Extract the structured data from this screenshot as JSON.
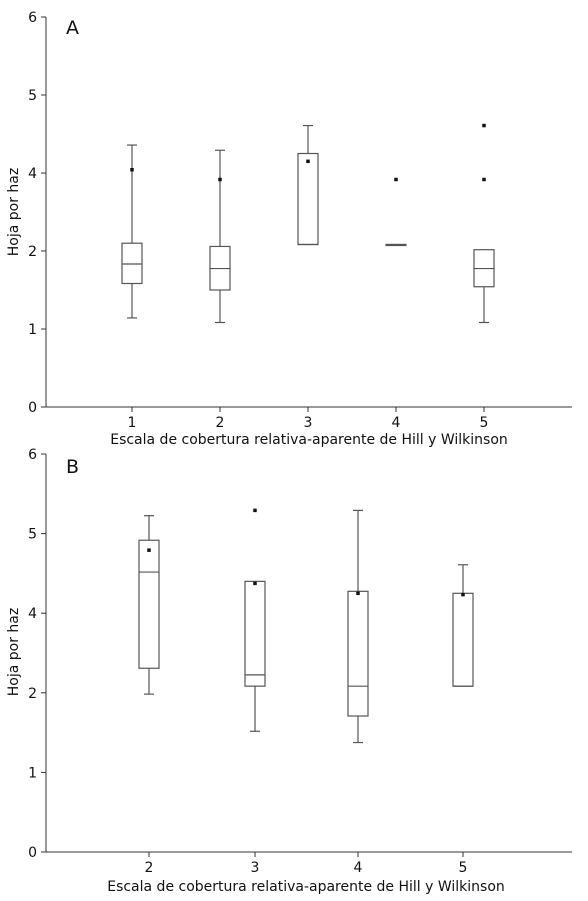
{
  "chart_data": [
    {
      "type": "box",
      "panel": "A",
      "xlabel": "Escala de cobertura relativa-aparente de Hill y Wilkinson",
      "ylabel": "Hoja por haz",
      "ylim": [
        0,
        6
      ],
      "yticks": [
        "0",
        "1",
        "2",
        "4",
        "5",
        "6"
      ],
      "categories": [
        "1",
        "2",
        "3",
        "4",
        "5"
      ],
      "boxes": [
        {
          "category": "1",
          "min": 1.37,
          "q1": 1.9,
          "median": 2.2,
          "q3": 2.52,
          "max": 4.03,
          "mean": 3.65
        },
        {
          "category": "2",
          "min": 1.3,
          "q1": 1.8,
          "median": 2.13,
          "q3": 2.47,
          "max": 3.95,
          "mean": 3.5
        },
        {
          "category": "3",
          "min": 2.5,
          "q1": 2.5,
          "median": 2.5,
          "q3": 3.9,
          "max": 4.33,
          "mean": 3.78
        },
        {
          "category": "4",
          "min": 2.5,
          "q1": 2.5,
          "median": 2.5,
          "q3": 2.5,
          "max": 2.5,
          "mean": 3.5
        },
        {
          "category": "5",
          "min": 1.3,
          "q1": 1.85,
          "median": 2.13,
          "q3": 2.42,
          "max": 2.42,
          "mean": 3.5,
          "outliers": [
            4.33
          ]
        }
      ]
    },
    {
      "type": "box",
      "panel": "B",
      "xlabel": "Escala de cobertura relativa-aparente de Hill y Wilkinson",
      "ylabel": "Hoja por haz",
      "ylim": [
        0,
        6
      ],
      "yticks": [
        "0",
        "1",
        "2",
        "4",
        "5",
        "6"
      ],
      "categories": [
        "2",
        "3",
        "4",
        "5"
      ],
      "boxes": [
        {
          "category": "2",
          "min": 2.38,
          "q1": 2.77,
          "median": 4.22,
          "q3": 4.7,
          "max": 5.07,
          "mean": 4.55
        },
        {
          "category": "3",
          "min": 1.82,
          "q1": 2.5,
          "median": 2.67,
          "q3": 4.08,
          "max": 4.08,
          "mean": 4.05,
          "outliers": [
            5.15
          ]
        },
        {
          "category": "4",
          "min": 1.65,
          "q1": 2.05,
          "median": 2.5,
          "q3": 3.93,
          "max": 5.15,
          "mean": 3.9
        },
        {
          "category": "5",
          "min": 2.5,
          "q1": 2.5,
          "median": 2.5,
          "q3": 3.9,
          "max": 4.33,
          "mean": 3.88
        }
      ]
    }
  ]
}
